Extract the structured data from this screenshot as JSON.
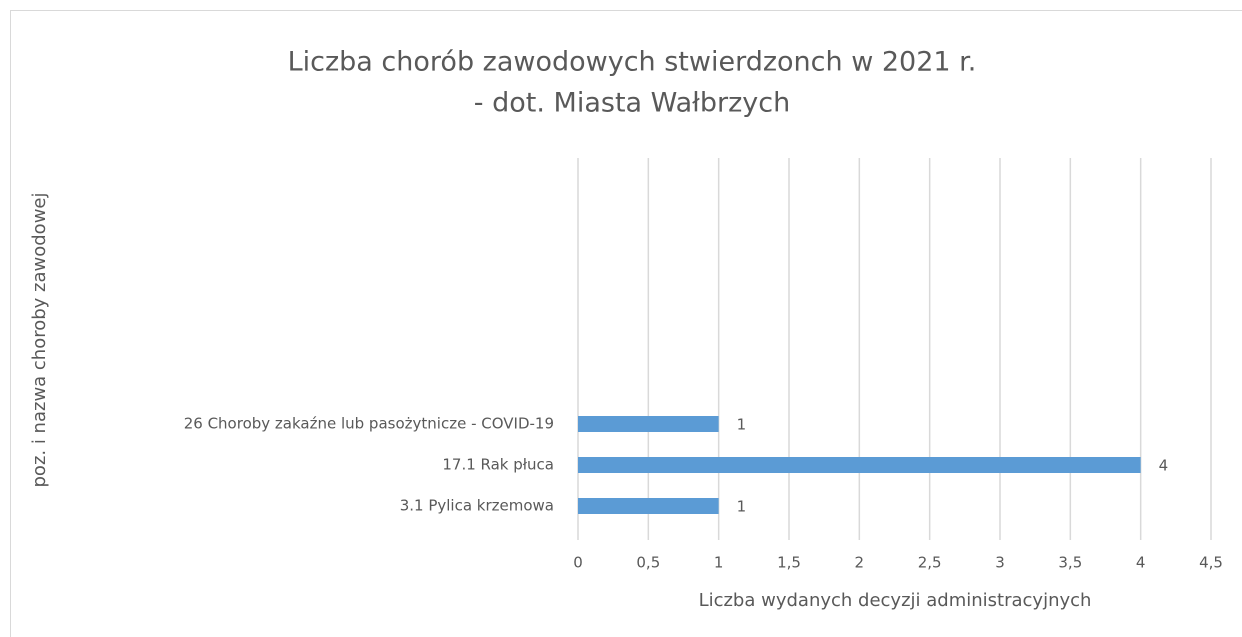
{
  "chart_data": {
    "type": "bar",
    "orientation": "horizontal",
    "title": [
      "Liczba chorób zawodowych stwierdzonch w  2021 r.",
      "- dot. Miasta Wałbrzych"
    ],
    "categories": [
      "26 Choroby zakaźne lub pasożytnicze - COVID-19",
      "17.1 Rak płuca",
      "3.1 Pylica krzemowa"
    ],
    "values": [
      1,
      4,
      1
    ],
    "color": "#5b9bd5",
    "xlim": [
      0,
      4.5
    ],
    "xticks": [
      0,
      {
        "value": 0.5,
        "label": "0,5"
      },
      1,
      {
        "value": 1.5,
        "label": "1,5"
      },
      2,
      {
        "value": 2.5,
        "label": "2,5"
      },
      3,
      {
        "value": 3.5,
        "label": "3,5"
      },
      4,
      {
        "value": 4.5,
        "label": "4,5"
      }
    ],
    "xlabel": "Liczba wydanych decyzji administracyjnych",
    "ylabel": "poz. i nazwa choroby zawodowej",
    "grid": true
  }
}
